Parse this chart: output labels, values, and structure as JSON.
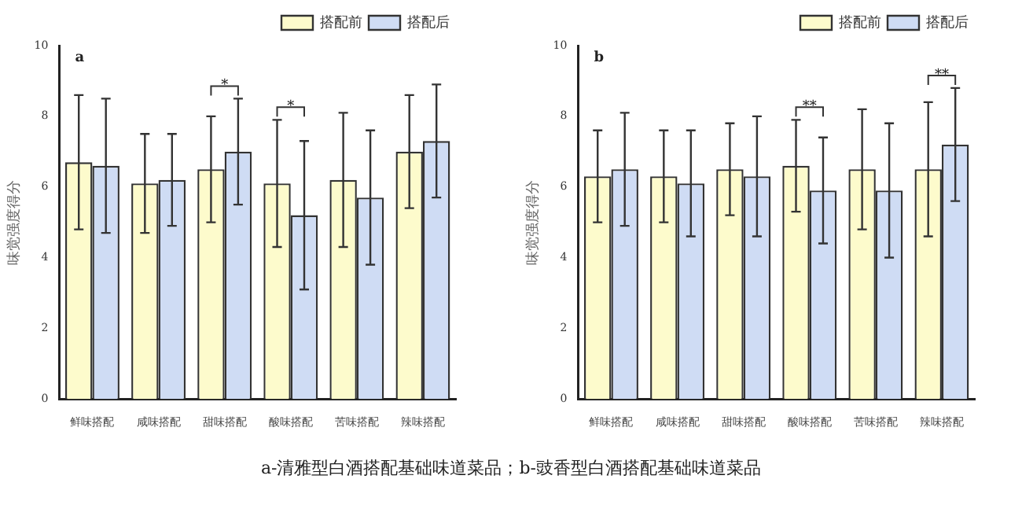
{
  "chart_data": [
    {
      "type": "bar",
      "title": "a",
      "ylabel": "味觉强度得分",
      "categories": [
        "鲜味搭配",
        "咸味搭配",
        "甜味搭配",
        "酸味搭配",
        "苦味搭配",
        "辣味搭配"
      ],
      "series": [
        {
          "name": "搭配前",
          "color": "#fdfbcc",
          "values": [
            6.7,
            6.1,
            6.5,
            6.1,
            6.2,
            7.0
          ],
          "errors": [
            1.9,
            1.4,
            1.5,
            1.8,
            1.9,
            1.6
          ]
        },
        {
          "name": "搭配后",
          "color": "#cfdcf4",
          "values": [
            6.6,
            6.2,
            7.0,
            5.2,
            5.7,
            7.3
          ],
          "errors": [
            1.9,
            1.3,
            1.5,
            2.1,
            1.9,
            1.6
          ]
        }
      ],
      "ylim": [
        0,
        10
      ],
      "yticks": [
        0,
        2,
        4,
        6,
        8,
        10
      ],
      "grid": false,
      "legend": "top right",
      "annotations": [
        "*",
        "*",
        "a-清雅型白酒搭配基础味道菜品；b-豉香型白酒搭配基础味道菜品"
      ]
    },
    {
      "type": "bar",
      "title": "b",
      "ylabel": "味觉强度得分",
      "categories": [
        "鲜味搭配",
        "咸味搭配",
        "甜味搭配",
        "酸味搭配",
        "苦味搭配",
        "辣味搭配"
      ],
      "series": [
        {
          "name": "搭配前",
          "color": "#fdfbcc",
          "values": [
            6.3,
            6.3,
            6.5,
            6.6,
            6.5,
            6.5
          ],
          "errors": [
            1.3,
            1.3,
            1.3,
            1.3,
            1.7,
            1.9
          ]
        },
        {
          "name": "搭配后",
          "color": "#cfdcf4",
          "values": [
            6.5,
            6.1,
            6.3,
            5.9,
            5.9,
            7.2
          ],
          "errors": [
            1.6,
            1.5,
            1.7,
            1.5,
            1.9,
            1.6
          ]
        }
      ],
      "ylim": [
        0,
        10
      ],
      "yticks": [
        0,
        2,
        4,
        6,
        8,
        10
      ],
      "grid": false,
      "legend": "top right",
      "annotations": [
        "**",
        "**"
      ]
    }
  ]
}
